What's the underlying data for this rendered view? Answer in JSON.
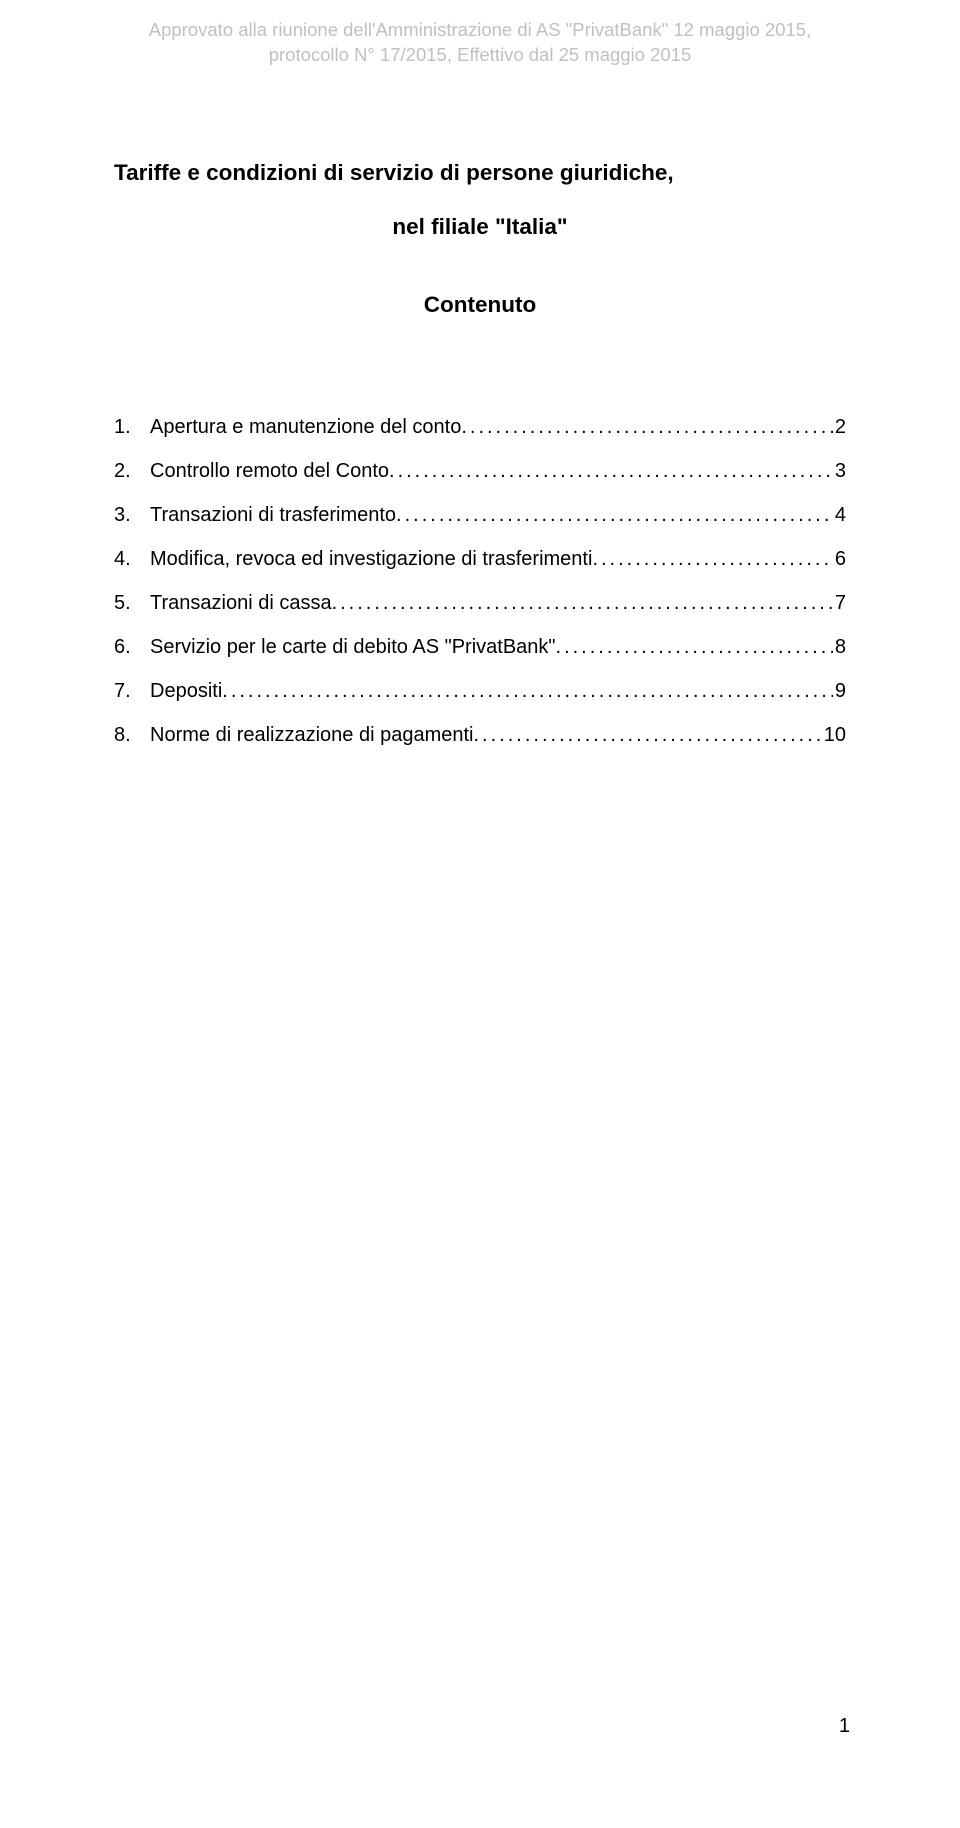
{
  "header": {
    "line1": "Approvato alla riunione dell'Amministrazione di AS \"PrivatBank\" 12 maggio 2015,",
    "line2": "protocollo N° 17/2015, Effettivo dal 25 maggio 2015"
  },
  "title": {
    "line1": "Tariffe e condizioni di servizio di persone giuridiche,",
    "line2": "nel filiale \"Italia\"",
    "contenuto": "Contenuto"
  },
  "toc": [
    {
      "n": "1.",
      "label": "Apertura e manutenzione del conto",
      "page": "2"
    },
    {
      "n": "2.",
      "label": "Controllo remoto del Conto",
      "page": "3"
    },
    {
      "n": "3.",
      "label": "Transazioni di trasferimento",
      "page": "4"
    },
    {
      "n": "4.",
      "label": "Modifica, revoca ed investigazione di trasferimenti",
      "page": "6"
    },
    {
      "n": "5.",
      "label": "Transazioni di cassa",
      "page": "7"
    },
    {
      "n": "6.",
      "label": "Servizio per le carte di debito AS \"PrivatBank\"",
      "page": "8"
    },
    {
      "n": "7.",
      "label": "Depositi",
      "page": "9"
    },
    {
      "n": "8.",
      "label": "Norme di realizzazione di pagamenti",
      "page": "10"
    }
  ],
  "footer": {
    "page_number": "1"
  },
  "dots": "........................................................................................................................................................................................"
}
